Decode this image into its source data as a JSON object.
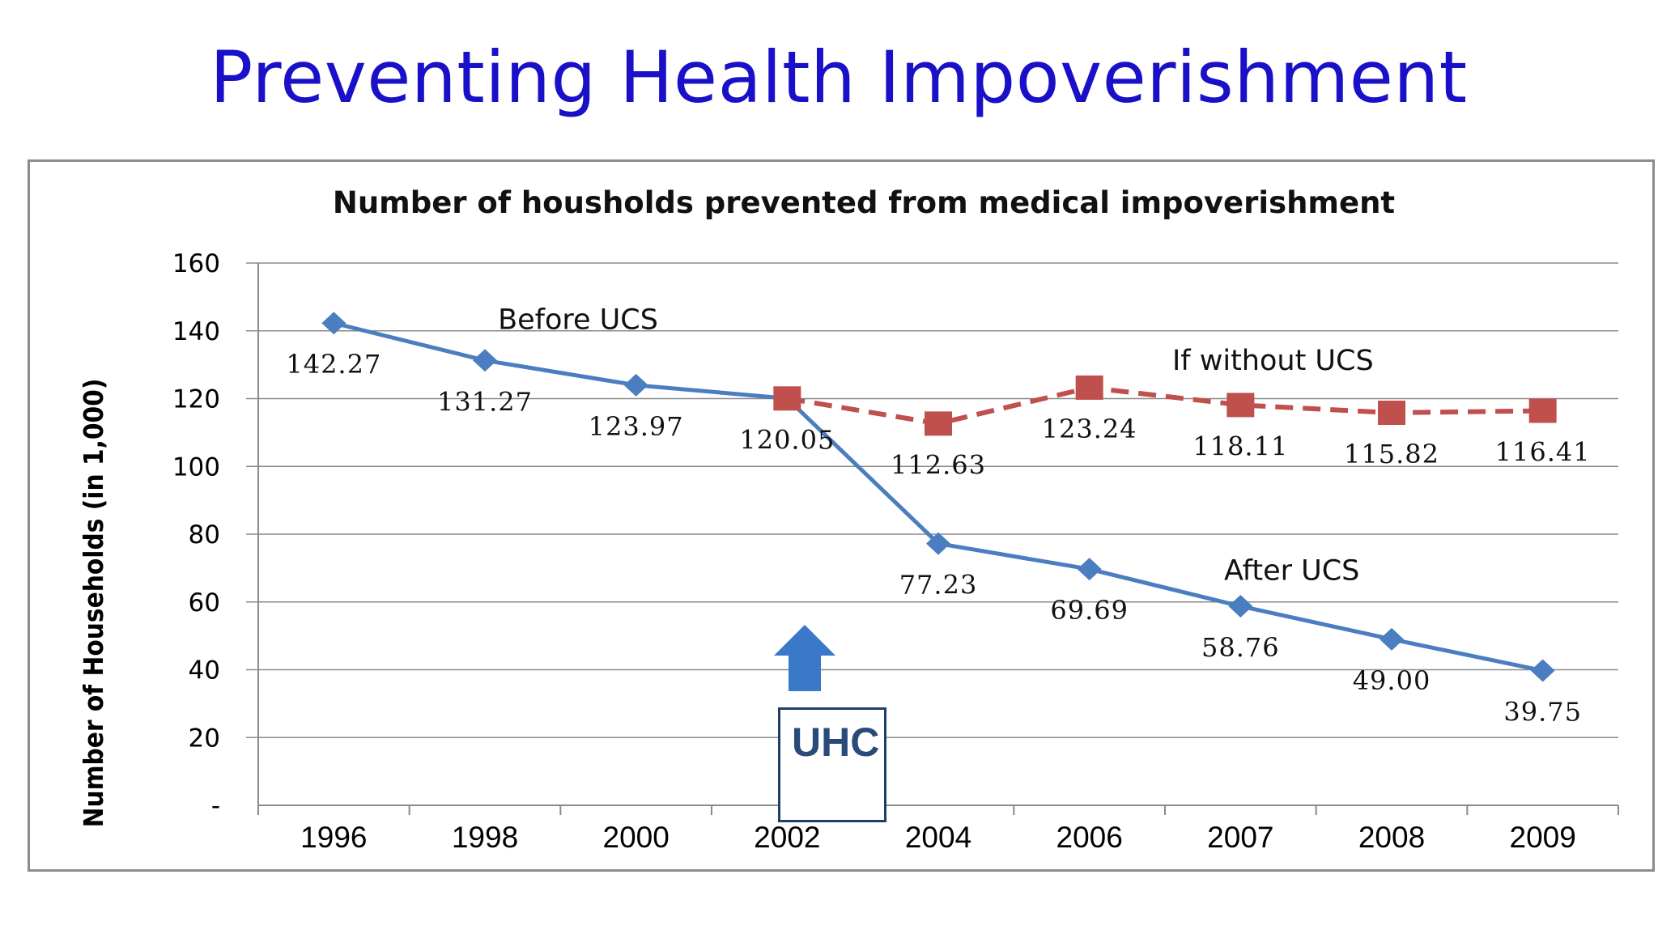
{
  "slide_title": "Preventing Health Impoverishment",
  "chart_data": {
    "type": "line",
    "title": "Number of housholds prevented from medical impoverishment",
    "ylabel": "Number of Households (in 1,000)",
    "xlabel": "",
    "ylim": [
      0,
      160
    ],
    "y_ticks": [
      "-",
      "20",
      "40",
      "60",
      "80",
      "100",
      "120",
      "140",
      "160"
    ],
    "y_tick_values": [
      0,
      20,
      40,
      60,
      80,
      100,
      120,
      140,
      160
    ],
    "categories": [
      "1996",
      "1998",
      "2000",
      "2002",
      "2004",
      "2006",
      "2007",
      "2008",
      "2009"
    ],
    "grid": true,
    "series": [
      {
        "values": [
          142.27,
          131.27,
          123.97,
          120.05,
          77.23,
          69.69,
          58.76,
          49.0,
          39.75
        ],
        "labels": [
          "142.27",
          "131.27",
          "123.97",
          "120.05",
          "77.23",
          "69.69",
          "58.76",
          "49.00",
          "39.75"
        ],
        "color": "#4a7ec0",
        "marker": "diamond",
        "style": "solid"
      },
      {
        "values": [
          null,
          null,
          null,
          120.05,
          112.63,
          123.24,
          118.11,
          115.82,
          116.41
        ],
        "labels": [
          null,
          null,
          null,
          null,
          "112.63",
          "123.24",
          "118.11",
          "115.82",
          "116.41"
        ],
        "color": "#c0504d",
        "marker": "square",
        "style": "dashed"
      }
    ],
    "annotations": [
      {
        "text": "Before UCS",
        "anchor_category": "1998"
      },
      {
        "text": "If without UCS",
        "anchor_category": "2007"
      },
      {
        "text": "After UCS",
        "anchor_category": "2007"
      }
    ]
  },
  "uhc_box": {
    "text": "UHC",
    "arrow_color": "#3a78c8",
    "border_color": "#1f3d6e"
  }
}
